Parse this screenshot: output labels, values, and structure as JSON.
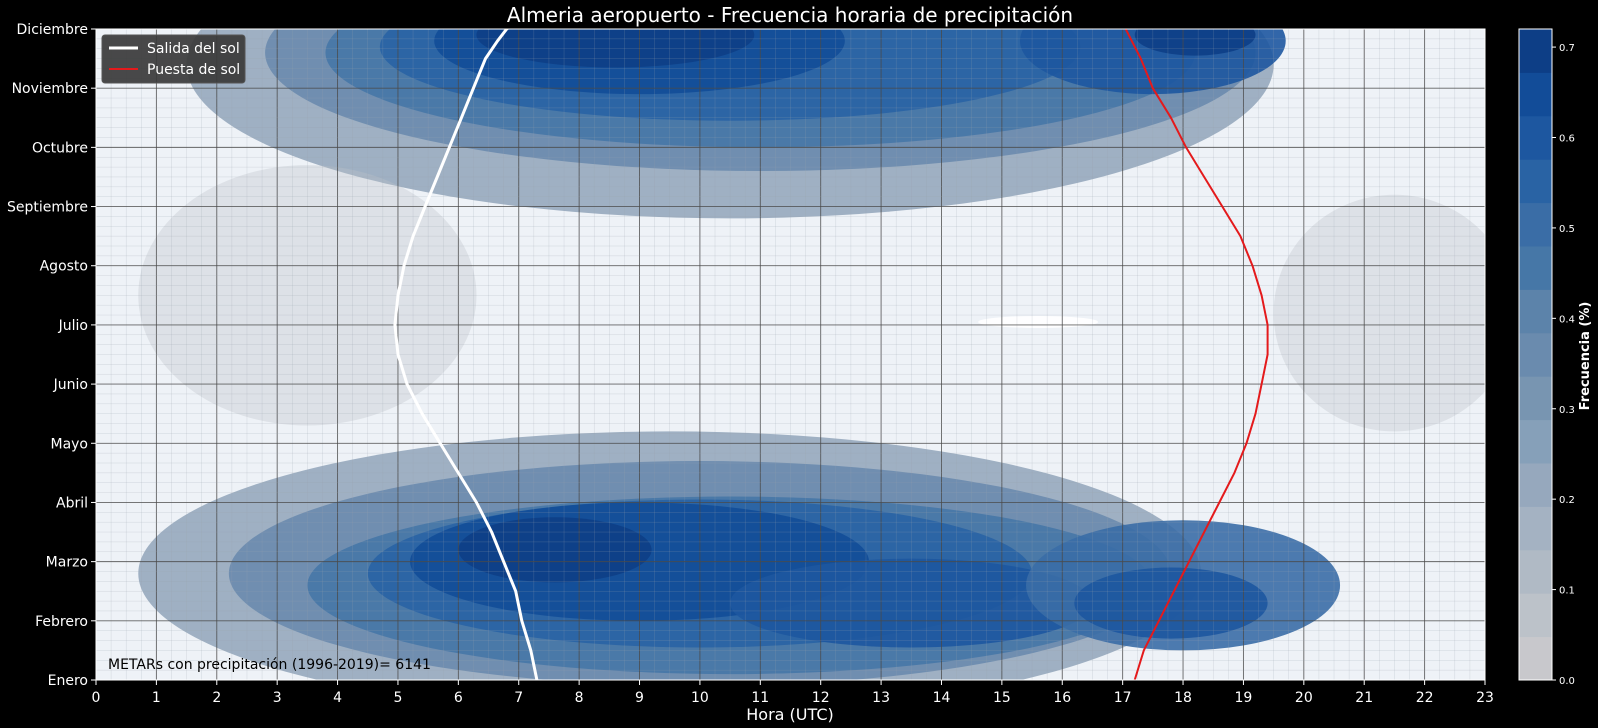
{
  "chart_data": {
    "type": "heatmap",
    "title": "Almeria aeropuerto - Frecuencia horaria de precipitación",
    "xlabel": "Hora (UTC)",
    "ylabel": "",
    "x_ticks": [
      0,
      1,
      2,
      3,
      4,
      5,
      6,
      7,
      8,
      9,
      10,
      11,
      12,
      13,
      14,
      15,
      16,
      17,
      18,
      19,
      20,
      21,
      22,
      23
    ],
    "xlim": [
      0,
      23
    ],
    "y_ticks": [
      "Enero",
      "Febrero",
      "Marzo",
      "Abril",
      "Mayo",
      "Junio",
      "Julio",
      "Agosto",
      "Septiembre",
      "Octubre",
      "Noviembre",
      "Diciembre"
    ],
    "ylim": [
      0,
      11
    ],
    "grid": true,
    "legend_position": "top-left",
    "colorbar": {
      "label": "Frecuencia  (%)",
      "ticks": [
        0.0,
        0.1,
        0.2,
        0.3,
        0.4,
        0.5,
        0.6,
        0.7
      ],
      "range": [
        0.0,
        0.72
      ],
      "levels": 15,
      "colors": [
        "#c8c8cc",
        "#bcc2c9",
        "#b0bac5",
        "#a4b2c2",
        "#96a8bd",
        "#86a0b9",
        "#7895b1",
        "#6a8bae",
        "#5c83aa",
        "#4677a7",
        "#3a6da6",
        "#2963a4",
        "#1d57a0",
        "#124c98",
        "#0d3e86"
      ]
    },
    "series": [
      {
        "name": "Salida del sol",
        "color": "#ffffff",
        "x": [
          7.3,
          7.2,
          7.05,
          6.95,
          6.75,
          6.55,
          6.3,
          6.0,
          5.7,
          5.4,
          5.15,
          5.0,
          4.95,
          5.0,
          5.1,
          5.25,
          5.45,
          5.65,
          5.85,
          6.05,
          6.25,
          6.45,
          6.65,
          6.8,
          6.95
        ],
        "y": [
          0,
          0.5,
          1.0,
          1.5,
          2.0,
          2.5,
          3.0,
          3.5,
          4.0,
          4.5,
          5.0,
          5.5,
          6.0,
          6.5,
          7.0,
          7.5,
          8.0,
          8.5,
          9.0,
          9.5,
          10.0,
          10.5,
          10.8,
          11.0,
          11.1
        ]
      },
      {
        "name": "Puesta de sol",
        "color": "#e41a1c",
        "x": [
          17.2,
          17.35,
          17.6,
          17.85,
          18.1,
          18.35,
          18.6,
          18.85,
          19.05,
          19.2,
          19.3,
          19.4,
          19.4,
          19.3,
          19.15,
          18.95,
          18.65,
          18.35,
          18.05,
          17.8,
          17.5,
          17.3,
          17.15,
          17.05,
          17.0
        ],
        "y": [
          0,
          0.5,
          1.0,
          1.5,
          2.0,
          2.5,
          3.0,
          3.5,
          4.0,
          4.5,
          5.0,
          5.5,
          6.0,
          6.5,
          7.0,
          7.5,
          8.0,
          8.5,
          9.0,
          9.5,
          10.0,
          10.5,
          10.8,
          11.0,
          11.1
        ]
      }
    ],
    "annotation": "METARs con precipitación (1996-2019)= 6141",
    "frequency_peaks": [
      {
        "hour": 8,
        "month": "Noviembre",
        "level": 0.67
      },
      {
        "hour": 18,
        "month": "Noviembre",
        "level": 0.66
      },
      {
        "hour": 7.5,
        "month": "Marzo",
        "level": 0.68
      },
      {
        "hour": 14,
        "month": "Febrero",
        "level": 0.58
      },
      {
        "hour": 19,
        "month": "Marzo",
        "level": 0.5
      },
      {
        "hour": 15.5,
        "month": "Julio",
        "level": 0.01
      }
    ]
  }
}
